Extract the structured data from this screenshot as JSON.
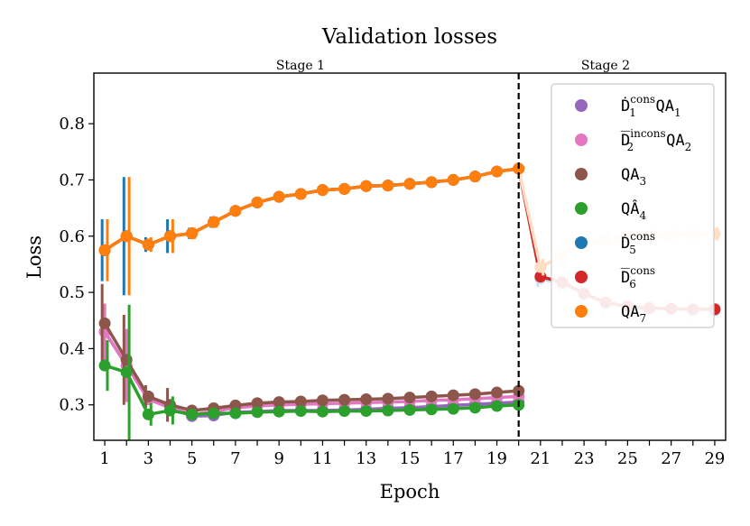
{
  "chart_data": {
    "type": "line",
    "title": "Validation losses",
    "xlabel": "Epoch",
    "ylabel": "Loss",
    "xlim": [
      0.5,
      29.5
    ],
    "ylim": [
      0.237,
      0.89
    ],
    "xticks": [
      1,
      3,
      5,
      7,
      9,
      11,
      13,
      15,
      17,
      19,
      21,
      23,
      25,
      27,
      29
    ],
    "xtick_labels": [
      "1",
      "3",
      "5",
      "7",
      "9",
      "11",
      "13",
      "15",
      "17",
      "19",
      "21",
      "23",
      "25",
      "27",
      "29"
    ],
    "yticks": [
      0.3,
      0.4,
      0.5,
      0.6,
      0.7,
      0.8
    ],
    "ytick_labels": [
      "0.3",
      "0.4",
      "0.5",
      "0.6",
      "0.7",
      "0.8"
    ],
    "stage_divider_x": 20,
    "stage_labels": [
      "Stage 1",
      "Stage 2"
    ],
    "legend": {
      "placement": "upper right",
      "entries": [
        {
          "base": "Ḋ",
          "sup": "cons",
          "sub": "1",
          "suffix": "QA",
          "suffix_sub": "1"
        },
        {
          "base": "D̅",
          "sup": "incons",
          "sub": "2",
          "suffix": "QA",
          "suffix_sub": "2"
        },
        {
          "base": "QA",
          "sup": "",
          "sub": "3",
          "suffix": "",
          "suffix_sub": ""
        },
        {
          "base": "QÂ",
          "sup": "",
          "sub": "4",
          "suffix": "",
          "suffix_sub": ""
        },
        {
          "base": "Ḋ",
          "sup": "cons",
          "sub": "5",
          "suffix": "",
          "suffix_sub": ""
        },
        {
          "base": "D̅",
          "sup": "cons",
          "sub": "6",
          "suffix": "",
          "suffix_sub": ""
        },
        {
          "base": "QA",
          "sup": "",
          "sub": "7",
          "suffix": "",
          "suffix_sub": ""
        }
      ]
    },
    "series": [
      {
        "name": "Ḋ_1^cons QA_1",
        "color": "#9467bd",
        "xoffset": 0,
        "x": [
          1,
          2,
          3,
          4,
          5,
          6,
          7,
          8,
          9,
          10,
          11,
          12,
          13,
          14,
          15,
          16,
          17,
          18,
          19,
          20
        ],
        "y": [
          0.43,
          0.37,
          0.31,
          0.295,
          0.28,
          0.281,
          0.287,
          0.288,
          0.29,
          0.29,
          0.29,
          0.291,
          0.292,
          0.294,
          0.295,
          0.297,
          0.299,
          0.301,
          0.303,
          0.305
        ],
        "err": [
          0.05,
          0.06,
          0.01,
          0,
          0,
          0,
          0,
          0,
          0,
          0,
          0,
          0,
          0,
          0,
          0,
          0,
          0,
          0,
          0,
          0
        ]
      },
      {
        "name": "D̅_2^incons QA_2",
        "color": "#e377c2",
        "xoffset": 0,
        "x": [
          1,
          2,
          3,
          4,
          5,
          6,
          7,
          8,
          9,
          10,
          11,
          12,
          13,
          14,
          15,
          16,
          17,
          18,
          19,
          20
        ],
        "y": [
          0.43,
          0.37,
          0.31,
          0.295,
          0.283,
          0.288,
          0.295,
          0.298,
          0.3,
          0.301,
          0.302,
          0.303,
          0.304,
          0.305,
          0.306,
          0.308,
          0.309,
          0.311,
          0.313,
          0.315
        ],
        "err": [
          0.05,
          0.065,
          0.01,
          0.01,
          0,
          0,
          0,
          0,
          0,
          0,
          0,
          0,
          0,
          0,
          0,
          0,
          0,
          0,
          0,
          0
        ]
      },
      {
        "name": "QA_3",
        "color": "#8c564b",
        "xoffset": -0.12,
        "x": [
          1,
          2,
          3,
          4,
          5,
          6,
          7,
          8,
          9,
          10,
          11,
          12,
          13,
          14,
          15,
          16,
          17,
          18,
          19,
          20
        ],
        "y": [
          0.445,
          0.38,
          0.315,
          0.3,
          0.29,
          0.294,
          0.299,
          0.303,
          0.305,
          0.306,
          0.308,
          0.309,
          0.31,
          0.311,
          0.313,
          0.315,
          0.317,
          0.319,
          0.322,
          0.325
        ],
        "err": [
          0.07,
          0.08,
          0.02,
          0.03,
          0,
          0,
          0,
          0,
          0,
          0,
          0,
          0,
          0,
          0,
          0,
          0,
          0,
          0,
          0,
          0
        ]
      },
      {
        "name": "QÂ_4",
        "color": "#2ca02c",
        "xoffset": 0.12,
        "x": [
          1,
          2,
          3,
          4,
          5,
          6,
          7,
          8,
          9,
          10,
          11,
          12,
          13,
          14,
          15,
          16,
          17,
          18,
          19,
          20
        ],
        "y": [
          0.37,
          0.358,
          0.283,
          0.29,
          0.283,
          0.285,
          0.285,
          0.287,
          0.288,
          0.289,
          0.288,
          0.289,
          0.289,
          0.29,
          0.291,
          0.292,
          0.293,
          0.295,
          0.298,
          0.3
        ],
        "err": [
          0.045,
          0.12,
          0.02,
          0.025,
          0,
          0,
          0,
          0,
          0,
          0,
          0,
          0,
          0,
          0,
          0,
          0,
          0,
          0,
          0,
          0
        ]
      },
      {
        "name": "Ḋ_5^cons",
        "color": "#1f77b4",
        "xoffset": -0.12,
        "x": [
          1,
          2,
          3,
          4,
          5,
          6,
          7,
          8,
          9,
          10,
          11,
          12,
          13,
          14,
          15,
          16,
          17,
          18,
          19,
          20,
          21,
          22,
          23,
          24,
          25,
          26,
          27,
          28,
          29
        ],
        "y": [
          0.575,
          0.6,
          0.585,
          0.6,
          0.605,
          0.625,
          0.645,
          0.66,
          0.67,
          0.675,
          0.682,
          0.684,
          0.689,
          0.69,
          0.693,
          0.696,
          0.7,
          0.706,
          0.715,
          0.72,
          0.525,
          0.515,
          0.495,
          0.48,
          0.472,
          0.47,
          0.469,
          0.468,
          0.468
        ],
        "err": [
          0.055,
          0.105,
          0.013,
          0.03,
          0.01,
          0.01,
          0.005,
          0,
          0,
          0,
          0,
          0,
          0,
          0,
          0,
          0,
          0,
          0,
          0,
          0,
          0.015,
          0.015,
          0.018,
          0.018,
          0.015,
          0.015,
          0.015,
          0.015,
          0.015
        ]
      },
      {
        "name": "D̅_6^cons",
        "color": "#d62728",
        "xoffset": 0,
        "x": [
          1,
          2,
          3,
          4,
          5,
          6,
          7,
          8,
          9,
          10,
          11,
          12,
          13,
          14,
          15,
          16,
          17,
          18,
          19,
          20,
          21,
          22,
          23,
          24,
          25,
          26,
          27,
          28,
          29
        ],
        "y": [
          0.575,
          0.6,
          0.585,
          0.6,
          0.605,
          0.625,
          0.645,
          0.66,
          0.67,
          0.675,
          0.682,
          0.684,
          0.689,
          0.69,
          0.693,
          0.696,
          0.7,
          0.706,
          0.715,
          0.72,
          0.528,
          0.518,
          0.498,
          0.482,
          0.475,
          0.472,
          0.471,
          0.47,
          0.47
        ],
        "err": [
          0,
          0,
          0,
          0,
          0,
          0,
          0,
          0,
          0,
          0,
          0,
          0,
          0,
          0,
          0,
          0,
          0,
          0,
          0,
          0,
          0.01,
          0.01,
          0.01,
          0.01,
          0.01,
          0.01,
          0.01,
          0.01,
          0.01
        ]
      },
      {
        "name": "QA_7",
        "color": "#ff7f0e",
        "xoffset": 0.12,
        "x": [
          1,
          2,
          3,
          4,
          5,
          6,
          7,
          8,
          9,
          10,
          11,
          12,
          13,
          14,
          15,
          16,
          17,
          18,
          19,
          20,
          21,
          22,
          23,
          24,
          25,
          26,
          27,
          28,
          29
        ],
        "y": [
          0.575,
          0.6,
          0.585,
          0.6,
          0.605,
          0.625,
          0.645,
          0.66,
          0.67,
          0.675,
          0.682,
          0.684,
          0.689,
          0.69,
          0.693,
          0.696,
          0.7,
          0.706,
          0.715,
          0.72,
          0.545,
          0.565,
          0.585,
          0.595,
          0.598,
          0.6,
          0.601,
          0.603,
          0.604
        ],
        "err": [
          0.055,
          0.105,
          0.013,
          0.03,
          0.01,
          0.01,
          0.005,
          0,
          0,
          0,
          0,
          0,
          0,
          0,
          0,
          0,
          0,
          0,
          0,
          0,
          0.015,
          0.015,
          0.015,
          0.012,
          0.012,
          0.012,
          0.012,
          0.012,
          0.012
        ]
      }
    ]
  }
}
